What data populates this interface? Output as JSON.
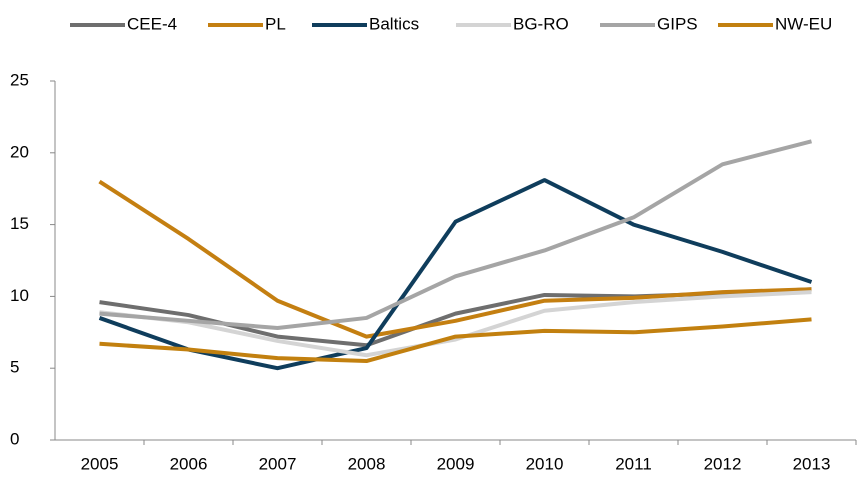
{
  "chart_data": {
    "type": "line",
    "categories": [
      "2005",
      "2006",
      "2007",
      "2008",
      "2009",
      "2010",
      "2011",
      "2012",
      "2013"
    ],
    "series": [
      {
        "name": "CEE-4",
        "color": "#6e6e6e",
        "values": [
          9.6,
          8.7,
          7.2,
          6.6,
          8.8,
          10.1,
          10.0,
          10.2,
          10.5
        ]
      },
      {
        "name": "PL",
        "color": "#c47f11",
        "values": [
          18.0,
          14.0,
          9.7,
          7.2,
          8.3,
          9.7,
          9.9,
          10.3,
          10.5
        ]
      },
      {
        "name": "Baltics",
        "color": "#0f3d5c",
        "values": [
          8.5,
          6.3,
          5.0,
          6.4,
          15.2,
          18.1,
          15.0,
          13.1,
          11.0
        ]
      },
      {
        "name": "BG-RO",
        "color": "#d4d4d4",
        "values": [
          8.9,
          8.2,
          6.9,
          5.9,
          7.0,
          9.0,
          9.6,
          10.0,
          10.3
        ]
      },
      {
        "name": "GIPS",
        "color": "#a5a5a5",
        "values": [
          8.8,
          8.3,
          7.8,
          8.5,
          11.4,
          13.2,
          15.5,
          19.2,
          20.8
        ]
      },
      {
        "name": "NW-EU",
        "color": "#c2800f",
        "values": [
          6.7,
          6.3,
          5.7,
          5.5,
          7.2,
          7.6,
          7.5,
          7.9,
          8.4
        ]
      }
    ],
    "ylim": [
      0,
      25
    ],
    "yticks": [
      0,
      5,
      10,
      15,
      20,
      25
    ],
    "grid": false,
    "legend": "top"
  }
}
